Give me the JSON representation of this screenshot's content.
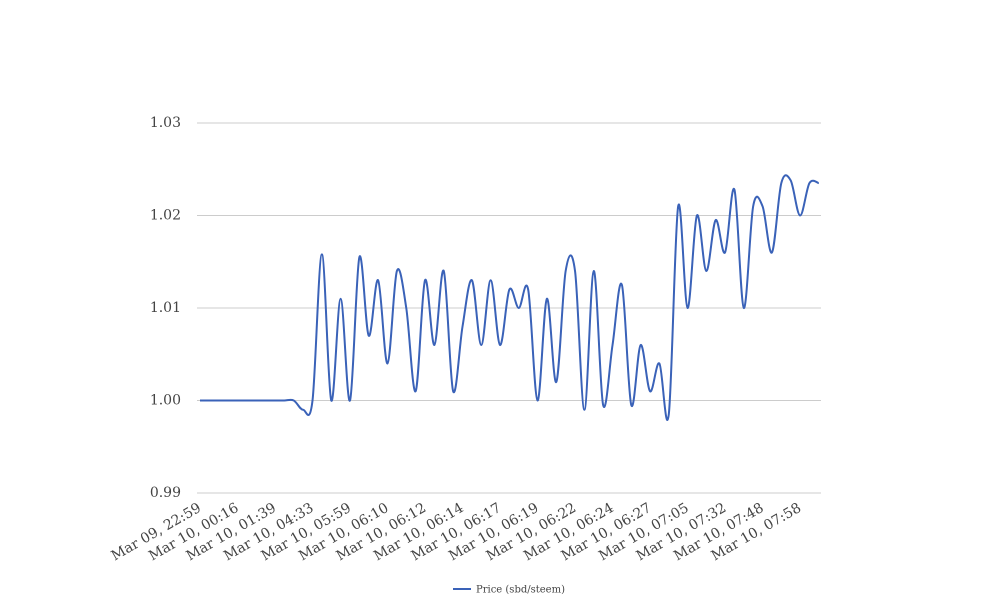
{
  "chart_data": {
    "type": "line",
    "categories": [
      "Mar 09, 22:59",
      null,
      null,
      null,
      "Mar 10, 00:16",
      null,
      null,
      null,
      "Mar 10, 01:39",
      null,
      null,
      null,
      "Mar 10, 04:33",
      null,
      null,
      null,
      "Mar 10, 05:59",
      null,
      null,
      null,
      "Mar 10, 06:10",
      null,
      null,
      null,
      "Mar 10, 06:12",
      null,
      null,
      null,
      "Mar 10, 06:14",
      null,
      null,
      null,
      "Mar 10, 06:17",
      null,
      null,
      null,
      "Mar 10, 06:19",
      null,
      null,
      null,
      "Mar 10, 06:22",
      null,
      null,
      null,
      "Mar 10, 06:24",
      null,
      null,
      null,
      "Mar 10, 06:27",
      null,
      null,
      null,
      "Mar 10, 07:05",
      null,
      null,
      null,
      "Mar 10, 07:32",
      null,
      null,
      null,
      "Mar 10, 07:48",
      null,
      null,
      null,
      "Mar 10, 07:58",
      null,
      null
    ],
    "series": [
      {
        "name": "Price (sbd/steem)",
        "color": "#3a62b8",
        "values": [
          1.0,
          1.0,
          1.0,
          1.0,
          1.0,
          1.0,
          1.0,
          1.0,
          1.0,
          1.0,
          1.0,
          0.999,
          1.0,
          1.0158,
          1.0,
          1.011,
          1.0,
          1.0155,
          1.007,
          1.013,
          1.004,
          1.014,
          1.01,
          1.001,
          1.013,
          1.006,
          1.014,
          1.001,
          1.008,
          1.013,
          1.006,
          1.013,
          1.006,
          1.012,
          1.01,
          1.012,
          1.0,
          1.011,
          1.002,
          1.014,
          1.014,
          0.999,
          1.014,
          0.9995,
          1.006,
          1.0125,
          0.9995,
          1.006,
          1.001,
          1.004,
          0.9985,
          1.021,
          1.01,
          1.02,
          1.014,
          1.0195,
          1.016,
          1.0228,
          1.01,
          1.021,
          1.021,
          1.016,
          1.0235,
          1.0238,
          1.02,
          1.0235,
          1.0235
        ]
      }
    ],
    "ylim": [
      0.99,
      1.03
    ],
    "yticks": [
      0.99,
      {
        "value": 1,
        "label": "1.00"
      },
      1.01,
      1.02,
      1.03
    ],
    "grid": true,
    "legend": "bottom"
  }
}
